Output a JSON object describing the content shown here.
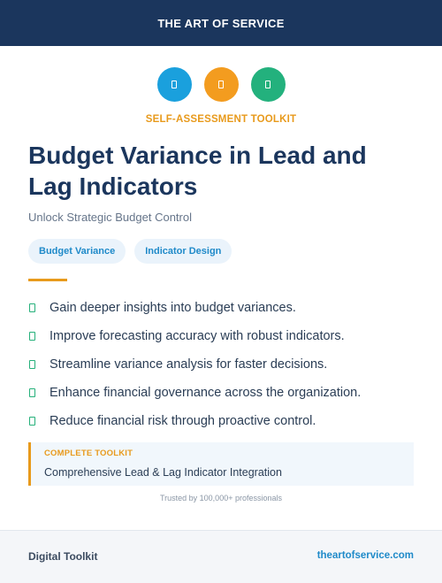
{
  "header": {
    "brand": "THE ART OF SERVICE"
  },
  "icons": [
    {
      "name": "doc-icon-blue",
      "color": "#1aa0dd"
    },
    {
      "name": "doc-icon-orange",
      "color": "#f39c1f"
    },
    {
      "name": "doc-icon-green",
      "color": "#23b17d"
    }
  ],
  "kicker": "SELF-ASSESSMENT TOOLKIT",
  "title": "Budget Variance in Lead and Lag Indicators",
  "subtitle": "Unlock Strategic Budget Control",
  "tags": [
    "Budget Variance",
    "Indicator Design"
  ],
  "benefits": [
    "Gain deeper insights into budget variances.",
    "Improve forecasting accuracy with robust indicators.",
    "Streamline variance analysis for faster decisions.",
    "Enhance financial governance across the organization.",
    "Reduce financial risk through proactive control."
  ],
  "callout": {
    "label": "COMPLETE TOOLKIT",
    "text": "Comprehensive Lead & Lag Indicator Integration"
  },
  "trusted": "Trusted by 100,000+ professionals",
  "footer": {
    "left": "Digital Toolkit",
    "right": "theartofservice.com"
  },
  "colors": {
    "navy": "#1b365d",
    "accent": "#e89a1c",
    "link": "#1f8ac9",
    "check": "#25b07a"
  }
}
